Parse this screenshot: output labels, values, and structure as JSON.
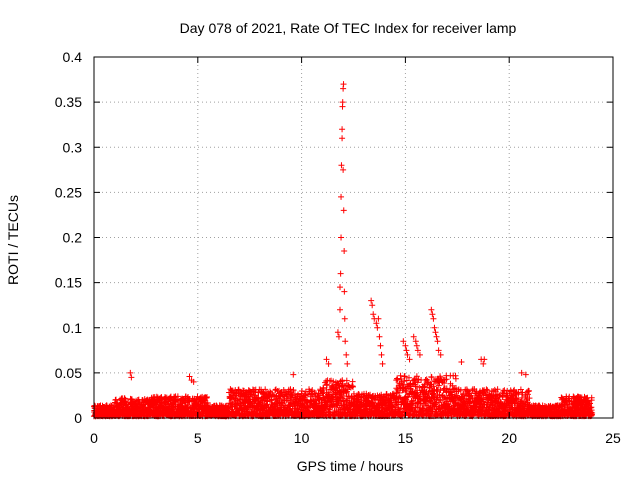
{
  "chart_data": {
    "type": "scatter",
    "title": "Day 078 of 2021, Rate Of TEC Index for receiver lamp",
    "xlabel": "GPS time / hours",
    "ylabel": "ROTI / TECUs",
    "xlim": [
      0,
      25
    ],
    "ylim": [
      0,
      0.4
    ],
    "x_ticks": [
      0,
      5,
      10,
      15,
      20,
      25
    ],
    "x_tick_labels": [
      "0",
      "5",
      "10",
      "15",
      "20",
      "25"
    ],
    "y_ticks": [
      0,
      0.05,
      0.1,
      0.15,
      0.2,
      0.25,
      0.3,
      0.35,
      0.4
    ],
    "y_tick_labels": [
      "0",
      "0.05",
      "0.1",
      "0.15",
      "0.2",
      "0.25",
      "0.3",
      "0.35",
      "0.4"
    ],
    "grid": true,
    "marker": "+",
    "color": "#ff0000",
    "series": [
      {
        "name": "ROTI",
        "points": [
          [
            1.75,
            0.05
          ],
          [
            1.8,
            0.045
          ],
          [
            4.6,
            0.046
          ],
          [
            4.7,
            0.042
          ],
          [
            4.8,
            0.04
          ],
          [
            9.6,
            0.048
          ],
          [
            11.2,
            0.065
          ],
          [
            11.3,
            0.06
          ],
          [
            11.75,
            0.095
          ],
          [
            11.8,
            0.09
          ],
          [
            11.85,
            0.12
          ],
          [
            11.85,
            0.145
          ],
          [
            11.88,
            0.16
          ],
          [
            11.9,
            0.2
          ],
          [
            11.9,
            0.245
          ],
          [
            11.92,
            0.28
          ],
          [
            11.95,
            0.31
          ],
          [
            11.95,
            0.32
          ],
          [
            11.97,
            0.345
          ],
          [
            11.98,
            0.35
          ],
          [
            12.0,
            0.365
          ],
          [
            12.02,
            0.37
          ],
          [
            12.0,
            0.275
          ],
          [
            12.03,
            0.23
          ],
          [
            12.05,
            0.185
          ],
          [
            12.06,
            0.14
          ],
          [
            12.08,
            0.11
          ],
          [
            12.1,
            0.085
          ],
          [
            12.15,
            0.07
          ],
          [
            12.2,
            0.06
          ],
          [
            13.35,
            0.13
          ],
          [
            13.4,
            0.125
          ],
          [
            13.45,
            0.115
          ],
          [
            13.5,
            0.11
          ],
          [
            13.6,
            0.105
          ],
          [
            13.65,
            0.1
          ],
          [
            13.7,
            0.11
          ],
          [
            13.75,
            0.09
          ],
          [
            13.8,
            0.08
          ],
          [
            13.85,
            0.07
          ],
          [
            13.9,
            0.06
          ],
          [
            14.9,
            0.085
          ],
          [
            15.0,
            0.08
          ],
          [
            15.05,
            0.075
          ],
          [
            15.1,
            0.07
          ],
          [
            15.2,
            0.065
          ],
          [
            15.4,
            0.09
          ],
          [
            15.5,
            0.085
          ],
          [
            15.55,
            0.08
          ],
          [
            15.6,
            0.075
          ],
          [
            15.7,
            0.07
          ],
          [
            16.25,
            0.12
          ],
          [
            16.3,
            0.115
          ],
          [
            16.35,
            0.11
          ],
          [
            16.4,
            0.1
          ],
          [
            16.45,
            0.095
          ],
          [
            16.5,
            0.09
          ],
          [
            16.55,
            0.085
          ],
          [
            16.6,
            0.075
          ],
          [
            16.7,
            0.07
          ],
          [
            17.7,
            0.062
          ],
          [
            18.65,
            0.065
          ],
          [
            18.75,
            0.06
          ],
          [
            18.8,
            0.065
          ],
          [
            20.6,
            0.05
          ],
          [
            20.8,
            0.048
          ]
        ]
      }
    ]
  }
}
